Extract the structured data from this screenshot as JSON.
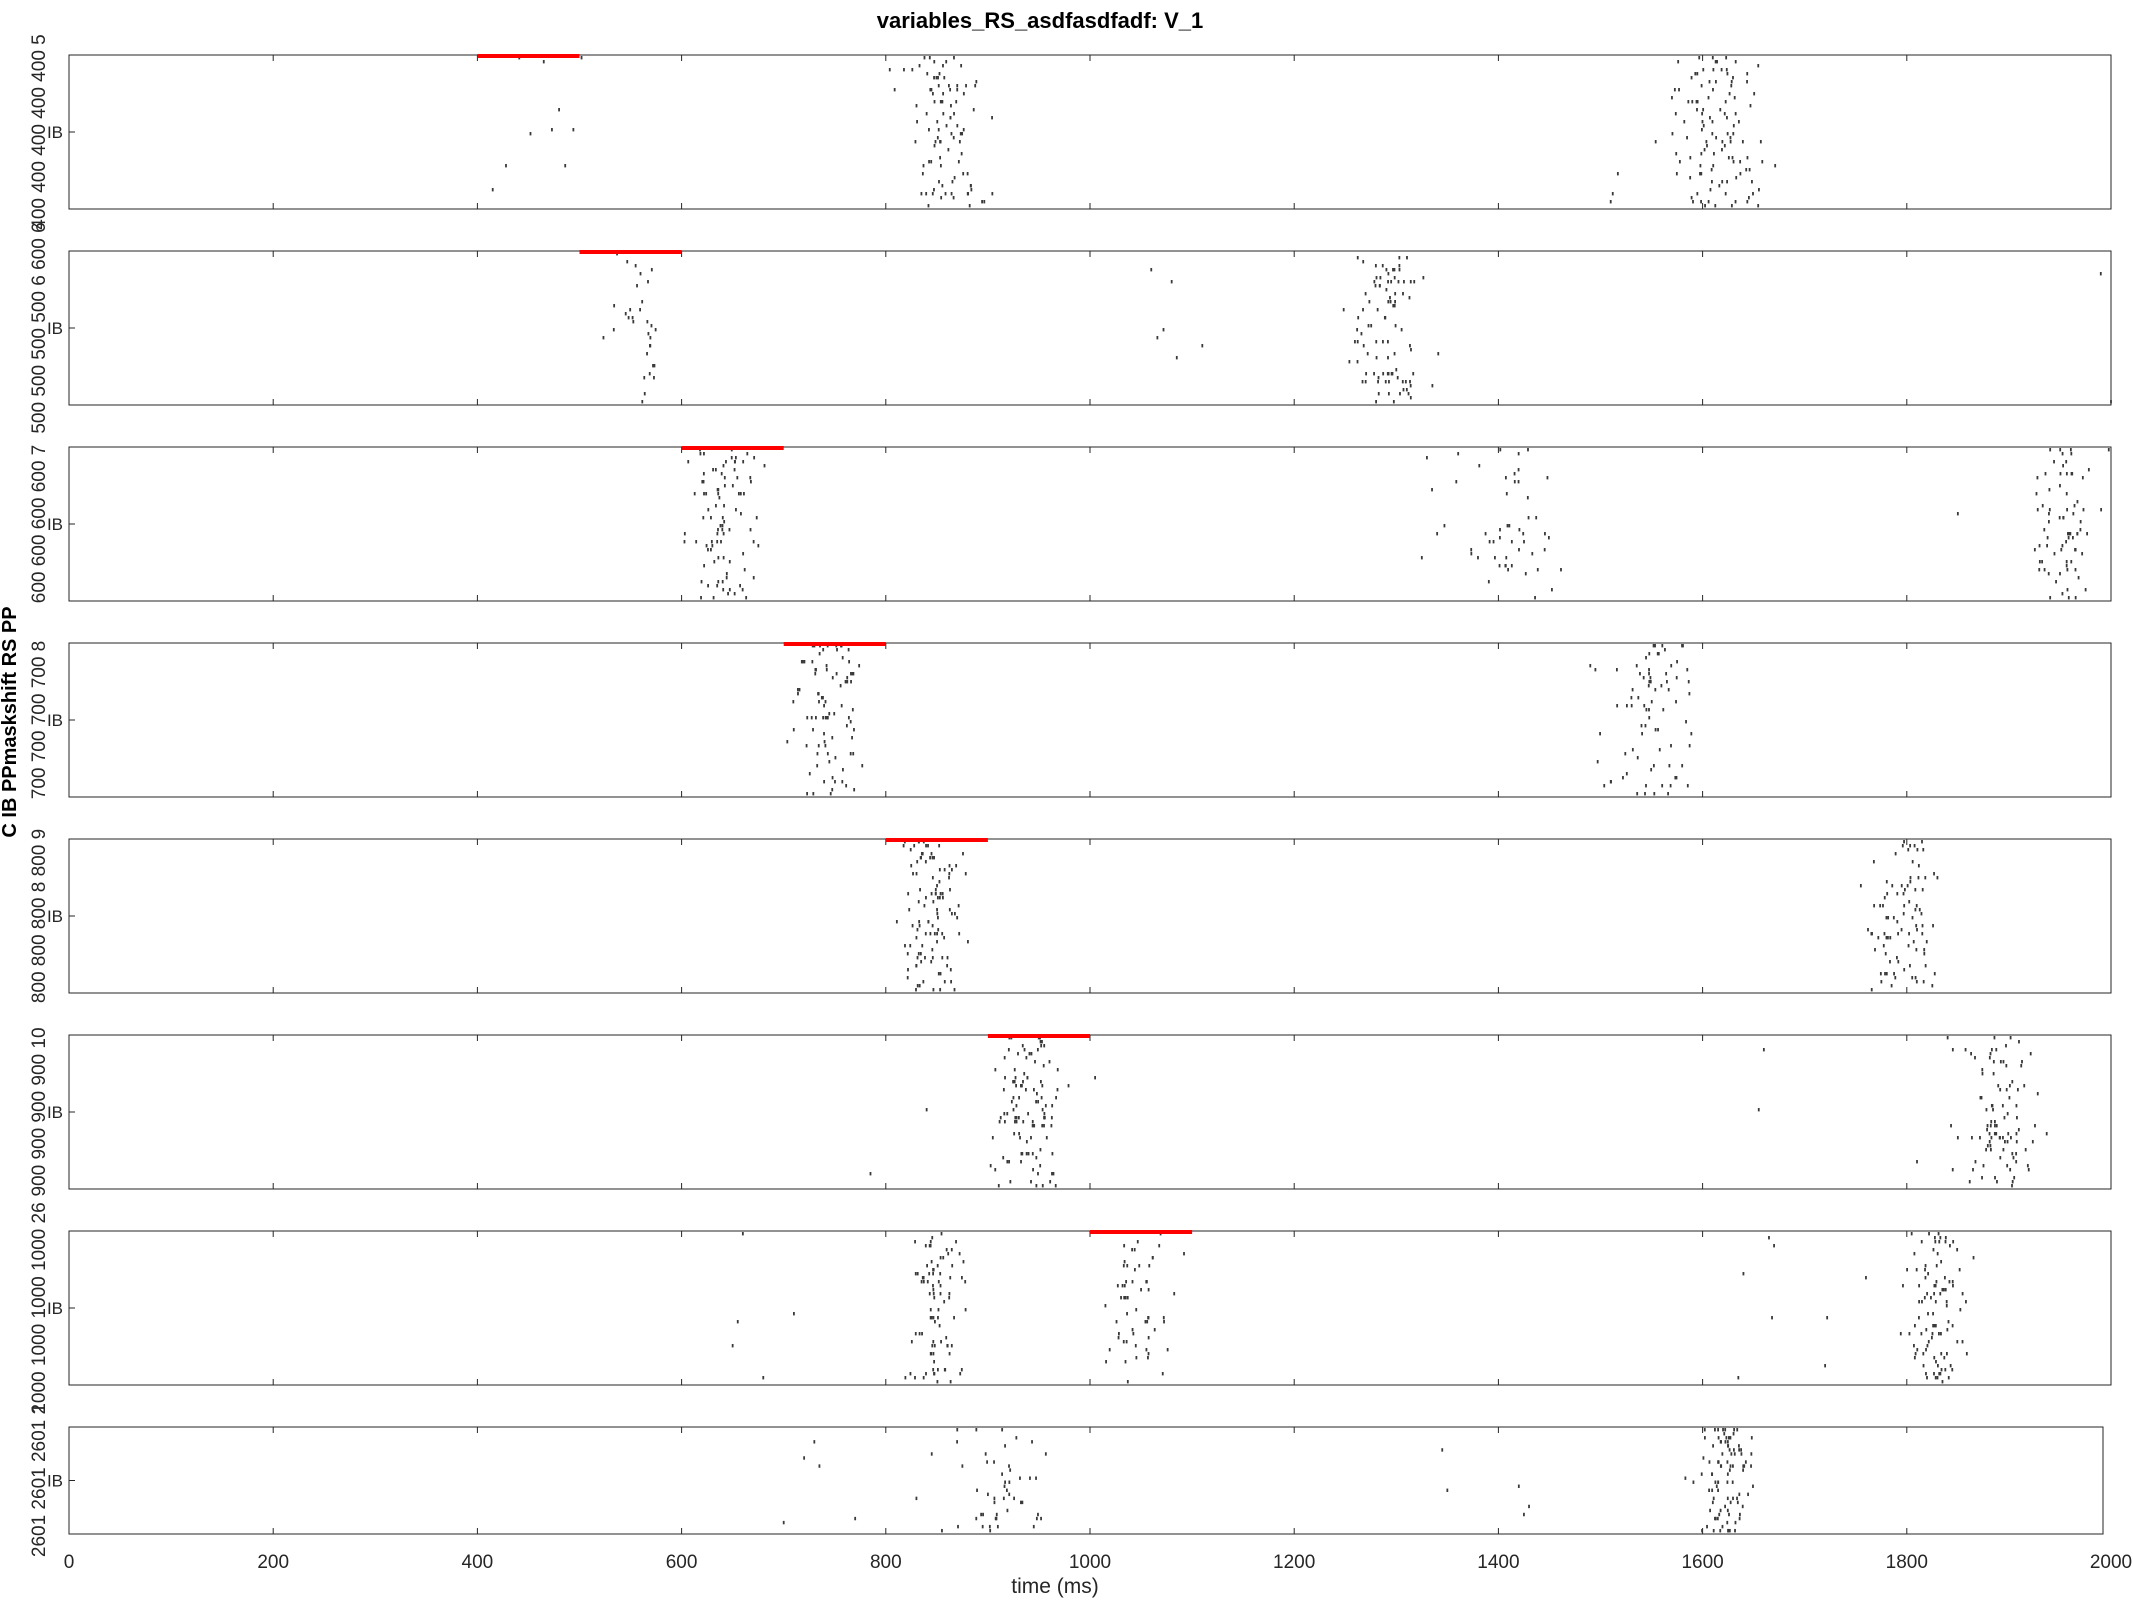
{
  "title": "variables_RS_asdfasdfadf: V_1",
  "ylabel": "C IB PPmaskshift RS PP",
  "chart_data": {
    "type": "raster",
    "title": "variables_RS_asdfasdfadf: V_1",
    "xlabel": "time (ms)",
    "ylabel": "C IB PPmaskshift RS PP",
    "xlim": [
      0,
      2000
    ],
    "xticks": [
      0,
      200,
      400,
      600,
      800,
      1000,
      1200,
      1400,
      1600,
      1800,
      2000
    ],
    "xtick_labels": [
      "0",
      "200",
      "400",
      "600",
      "800",
      "1000",
      "1200",
      "1400",
      "1600",
      "1800",
      "2000"
    ],
    "grid": false,
    "stim_color": "#ff0000",
    "spike_color": "#3a3a3a",
    "panels": [
      {
        "label": "IB",
        "ytick_labels": [
          "400",
          "400",
          "400 400",
          "400 5"
        ],
        "stimulus": [
          400,
          500
        ],
        "bursts": [
          {
            "center": 855,
            "spread": 18,
            "n": 95
          },
          {
            "center": 1615,
            "spread": 20,
            "n": 115
          }
        ],
        "sparse": [
          415,
          428,
          441,
          452,
          465,
          473,
          480,
          486,
          494,
          502,
          1510,
          1512,
          1517
        ]
      },
      {
        "label": "IB",
        "ytick_labels": [
          "500",
          "500 500",
          "500 6",
          "600 6"
        ],
        "stimulus": [
          500,
          600
        ],
        "bursts": [
          {
            "center": 555,
            "spread": 15,
            "n": 32
          },
          {
            "center": 1290,
            "spread": 18,
            "n": 95
          }
        ],
        "sparse": [
          1060,
          1066,
          1072,
          1080,
          1085,
          1110,
          1270,
          1990,
          2000,
          2003
        ]
      },
      {
        "label": "IB",
        "ytick_labels": [
          "600",
          "600",
          "600",
          "600 7"
        ],
        "stimulus": [
          600,
          700
        ],
        "bursts": [
          {
            "center": 640,
            "spread": 16,
            "n": 92
          },
          {
            "center": 1410,
            "spread": 24,
            "n": 48
          },
          {
            "center": 1955,
            "spread": 15,
            "n": 75
          }
        ],
        "sparse": [
          1325,
          1330,
          1335,
          1340,
          1380,
          1850,
          1930
        ]
      },
      {
        "label": "IB",
        "ytick_labels": [
          "700",
          "700",
          "700",
          "700 8"
        ],
        "stimulus": [
          700,
          800
        ],
        "bursts": [
          {
            "center": 745,
            "spread": 17,
            "n": 90
          },
          {
            "center": 1545,
            "spread": 20,
            "n": 75
          }
        ],
        "sparse": [
          1490,
          1495,
          1575,
          1580,
          1585
        ]
      },
      {
        "label": "IB",
        "ytick_labels": [
          "800",
          "800",
          "800 8",
          "800 9"
        ],
        "stimulus": [
          800,
          900
        ],
        "bursts": [
          {
            "center": 845,
            "spread": 15,
            "n": 110
          },
          {
            "center": 1795,
            "spread": 15,
            "n": 85
          }
        ],
        "sparse": [
          1755,
          1762,
          1768,
          1825,
          1830
        ]
      },
      {
        "label": "IB",
        "ytick_labels": [
          "900",
          "900",
          "900",
          "900 10"
        ],
        "stimulus": [
          900,
          1000
        ],
        "bursts": [
          {
            "center": 940,
            "spread": 16,
            "n": 110
          },
          {
            "center": 1890,
            "spread": 18,
            "n": 95
          }
        ],
        "sparse": [
          785,
          840,
          1005,
          1655,
          1660,
          1810,
          1840,
          1845,
          1850
        ]
      },
      {
        "label": "IB",
        "ytick_labels": [
          "1000",
          "1000",
          "1000",
          "1000 26"
        ],
        "stimulus": [
          1000,
          1100
        ],
        "bursts": [
          {
            "center": 850,
            "spread": 14,
            "n": 90
          },
          {
            "center": 1050,
            "spread": 18,
            "n": 58
          },
          {
            "center": 1830,
            "spread": 15,
            "n": 100
          }
        ],
        "sparse": [
          650,
          655,
          660,
          680,
          710,
          1635,
          1640,
          1665,
          1668,
          1670,
          1720,
          1722,
          1760
        ]
      },
      {
        "label": "IB",
        "ytick_labels": [
          "2601",
          "2601",
          "2601 2"
        ],
        "stimulus": null,
        "bursts": [
          {
            "center": 920,
            "spread": 22,
            "n": 45
          },
          {
            "center": 1620,
            "spread": 13,
            "n": 95
          }
        ],
        "sparse": [
          700,
          720,
          730,
          735,
          770,
          830,
          845,
          855,
          870,
          875,
          1345,
          1350,
          1420,
          1425,
          1430
        ]
      }
    ]
  }
}
